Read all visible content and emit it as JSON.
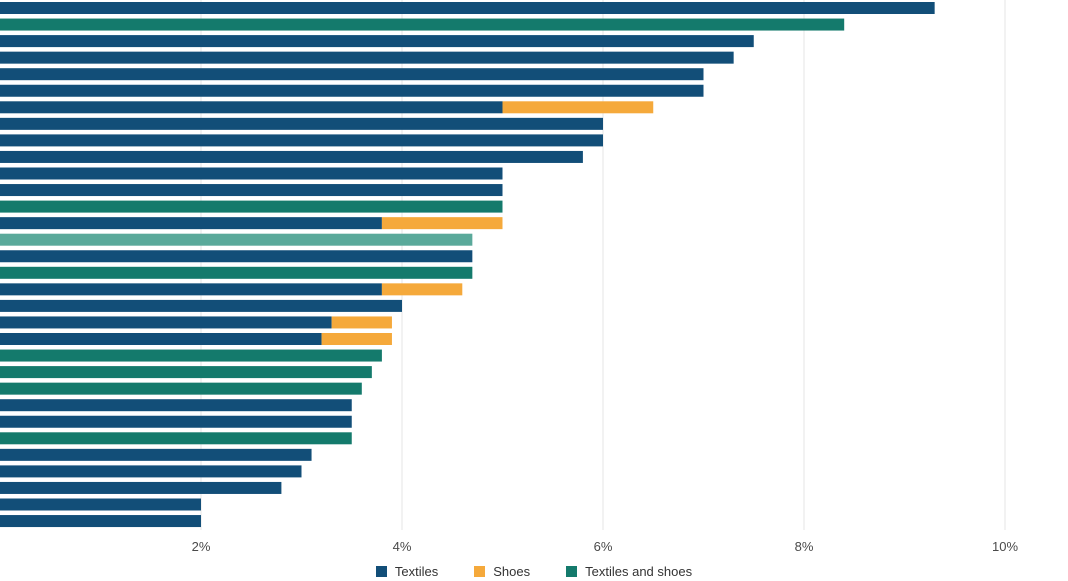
{
  "chart_data": {
    "type": "bar",
    "orientation": "horizontal",
    "stacked": true,
    "xlim": [
      0,
      10.5
    ],
    "xticks": [
      2,
      4,
      6,
      8,
      10
    ],
    "xtick_labels": [
      "2%",
      "4%",
      "6%",
      "8%",
      "10%"
    ],
    "grid": true,
    "legend_position": "bottom",
    "colors": {
      "textiles": "#124e78",
      "shoes": "#f5a93b",
      "textiles_and_shoes": "#147a6c",
      "highlight": "#5aa99a"
    },
    "legend": [
      {
        "key": "textiles",
        "label": "Textiles"
      },
      {
        "key": "shoes",
        "label": "Shoes"
      },
      {
        "key": "textiles_and_shoes",
        "label": "Textiles and shoes"
      }
    ],
    "rows": [
      {
        "textiles": 9.3
      },
      {
        "textiles_and_shoes": 8.4
      },
      {
        "textiles": 7.5
      },
      {
        "textiles": 7.3
      },
      {
        "textiles": 7.0
      },
      {
        "textiles": 7.0
      },
      {
        "textiles": 5.0,
        "shoes": 1.5
      },
      {
        "textiles": 6.0
      },
      {
        "textiles": 6.0
      },
      {
        "textiles": 5.8
      },
      {
        "textiles": 5.0
      },
      {
        "textiles": 5.0
      },
      {
        "textiles_and_shoes": 5.0
      },
      {
        "textiles": 3.8,
        "shoes": 1.2
      },
      {
        "highlight": 4.7
      },
      {
        "textiles": 4.7
      },
      {
        "textiles_and_shoes": 4.7
      },
      {
        "textiles": 3.8,
        "shoes": 0.8
      },
      {
        "textiles": 4.0
      },
      {
        "textiles": 3.3,
        "shoes": 0.6
      },
      {
        "textiles": 3.2,
        "shoes": 0.7
      },
      {
        "textiles_and_shoes": 3.8
      },
      {
        "textiles_and_shoes": 3.7
      },
      {
        "textiles_and_shoes": 3.6
      },
      {
        "textiles": 3.5
      },
      {
        "textiles": 3.5
      },
      {
        "textiles_and_shoes": 3.5
      },
      {
        "textiles": 3.1
      },
      {
        "textiles": 3.0
      },
      {
        "textiles": 2.8
      },
      {
        "textiles": 2.0
      },
      {
        "textiles": 2.0
      }
    ]
  }
}
